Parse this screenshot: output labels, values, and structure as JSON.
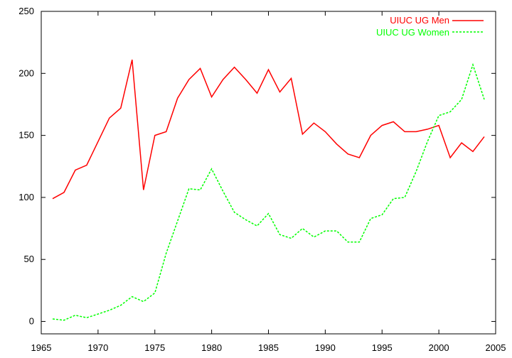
{
  "chart_data": {
    "type": "line",
    "title": "",
    "xlabel": "",
    "ylabel": "",
    "xlim": [
      1965,
      2005
    ],
    "ylim": [
      -10,
      250
    ],
    "xticks": [
      1965,
      1970,
      1975,
      1980,
      1985,
      1990,
      1995,
      2000,
      2005
    ],
    "yticks": [
      0,
      50,
      100,
      150,
      200,
      250
    ],
    "grid": false,
    "legend_position": "top-right",
    "x": [
      1966,
      1967,
      1968,
      1969,
      1970,
      1971,
      1972,
      1973,
      1974,
      1975,
      1976,
      1977,
      1978,
      1979,
      1980,
      1981,
      1982,
      1983,
      1984,
      1985,
      1986,
      1987,
      1988,
      1989,
      1990,
      1991,
      1992,
      1993,
      1994,
      1995,
      1996,
      1997,
      1998,
      1999,
      2000,
      2001,
      2002,
      2003,
      2004
    ],
    "series": [
      {
        "name": "UIUC UG Men",
        "color": "#ff0000",
        "dash": "solid",
        "values": [
          99,
          104,
          122,
          126,
          145,
          164,
          172,
          211,
          106,
          150,
          153,
          180,
          195,
          204,
          181,
          195,
          205,
          195,
          184,
          203,
          185,
          196,
          151,
          160,
          153,
          143,
          135,
          132,
          150,
          158,
          161,
          153,
          153,
          155,
          158,
          132,
          144,
          137,
          149
        ]
      },
      {
        "name": "UIUC UG Women",
        "color": "#00ff00",
        "dash": "dashed",
        "values": [
          2,
          1,
          5,
          3,
          6,
          9,
          13,
          20,
          16,
          23,
          55,
          81,
          107,
          106,
          123,
          105,
          88,
          82,
          77,
          87,
          70,
          67,
          75,
          68,
          73,
          73,
          64,
          64,
          83,
          86,
          99,
          100,
          121,
          145,
          166,
          169,
          179,
          207,
          179
        ]
      }
    ]
  }
}
